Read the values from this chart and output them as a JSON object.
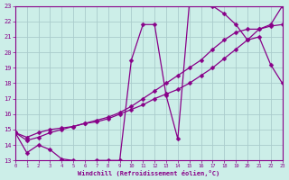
{
  "xlabel": "Windchill (Refroidissement éolien,°C)",
  "bg_color": "#cceee8",
  "grid_color": "#aacccc",
  "line_color": "#880088",
  "xlim": [
    0,
    23
  ],
  "ylim": [
    13,
    23
  ],
  "xtick_vals": [
    0,
    1,
    2,
    3,
    4,
    5,
    6,
    7,
    8,
    9,
    10,
    11,
    12,
    13,
    14,
    15,
    16,
    17,
    18,
    19,
    20,
    21,
    22,
    23
  ],
  "ytick_vals": [
    13,
    14,
    15,
    16,
    17,
    18,
    19,
    20,
    21,
    22,
    23
  ],
  "curve1_x": [
    0,
    1,
    2,
    3,
    4,
    5,
    6,
    7,
    8,
    9,
    10,
    11,
    12,
    13,
    14,
    15,
    16,
    17,
    18,
    19,
    20,
    21,
    22,
    23
  ],
  "curve1_y": [
    14.8,
    13.5,
    14.0,
    13.7,
    13.1,
    13.0,
    12.9,
    13.0,
    13.0,
    13.0,
    19.5,
    21.8,
    21.8,
    17.2,
    14.4,
    23.2,
    23.3,
    23.0,
    22.5,
    21.8,
    20.8,
    21.0,
    19.2,
    18.0
  ],
  "curve2_x": [
    0,
    1,
    2,
    3,
    4,
    5,
    6,
    7,
    8,
    9,
    10,
    11,
    12,
    13,
    14,
    15,
    16,
    17,
    18,
    19,
    20,
    21,
    22,
    23
  ],
  "curve2_y": [
    14.8,
    14.5,
    14.8,
    15.0,
    15.1,
    15.2,
    15.4,
    15.5,
    15.7,
    16.0,
    16.3,
    16.6,
    17.0,
    17.3,
    17.6,
    18.0,
    18.5,
    19.0,
    19.6,
    20.2,
    20.8,
    21.5,
    21.8,
    23.0
  ],
  "curve3_x": [
    0,
    1,
    2,
    3,
    4,
    5,
    6,
    7,
    8,
    9,
    10,
    11,
    12,
    13,
    14,
    15,
    16,
    17,
    18,
    19,
    20,
    21,
    22,
    23
  ],
  "curve3_y": [
    14.8,
    14.3,
    14.5,
    14.8,
    15.0,
    15.2,
    15.4,
    15.6,
    15.8,
    16.1,
    16.5,
    17.0,
    17.5,
    18.0,
    18.5,
    19.0,
    19.5,
    20.2,
    20.8,
    21.3,
    21.5,
    21.5,
    21.7,
    21.8
  ],
  "markersize": 2.5
}
